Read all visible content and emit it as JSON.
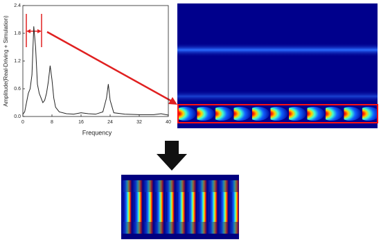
{
  "chart_data": {
    "type": "line",
    "x_label": "Frequency",
    "y_label": "Amplitude(Real-Driving + Simulation)",
    "x": [
      0,
      0.5,
      1,
      1.5,
      2,
      2.5,
      3,
      3.5,
      4,
      4.5,
      5,
      5.5,
      6,
      6.5,
      7,
      7.5,
      8,
      8.5,
      9,
      10,
      12,
      14,
      16,
      18,
      20,
      22,
      23,
      23.5,
      24,
      25,
      28,
      32,
      36,
      38,
      40
    ],
    "series": [
      {
        "color": "#222222",
        "values": [
          0.05,
          0.1,
          0.3,
          0.5,
          0.6,
          0.9,
          1.95,
          1.5,
          0.7,
          0.5,
          0.4,
          0.3,
          0.35,
          0.5,
          0.75,
          1.1,
          0.8,
          0.4,
          0.2,
          0.1,
          0.06,
          0.05,
          0.08,
          0.06,
          0.05,
          0.1,
          0.4,
          0.7,
          0.35,
          0.08,
          0.05,
          0.04,
          0.04,
          0.06,
          0.03
        ]
      }
    ],
    "xlim": [
      0,
      40
    ],
    "xticks": [
      0,
      8,
      16,
      24,
      32,
      40
    ],
    "ylim": [
      0,
      2.4
    ],
    "yticks": [
      {
        "value": 0,
        "label": "0.0"
      },
      0.6,
      1.2,
      1.8,
      2.4
    ]
  }
}
